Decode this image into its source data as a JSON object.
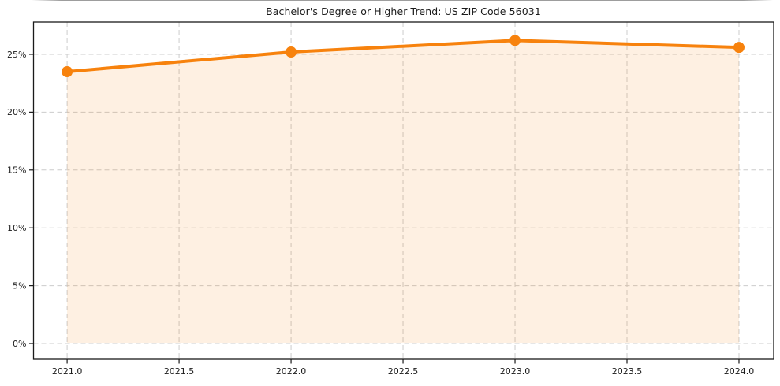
{
  "chart_data": {
    "type": "line",
    "title": "Bachelor's Degree or Higher Trend: US ZIP Code 56031",
    "xlabel": "",
    "ylabel": "",
    "x": [
      2021.0,
      2022.0,
      2023.0,
      2024.0
    ],
    "values": [
      23.5,
      25.2,
      26.2,
      25.6
    ],
    "area_fill": true,
    "area_baseline": 0,
    "marker": "circle",
    "x_tick_values": [
      2021.0,
      2021.5,
      2022.0,
      2022.5,
      2023.0,
      2023.5,
      2024.0
    ],
    "x_tick_labels": [
      "2021.0",
      "2021.5",
      "2022.0",
      "2022.5",
      "2023.0",
      "2023.5",
      "2024.0"
    ],
    "y_tick_values": [
      0,
      5,
      10,
      15,
      20,
      25
    ],
    "y_tick_labels": [
      "0%",
      "5%",
      "10%",
      "15%",
      "20%",
      "25%"
    ],
    "xlim": [
      2020.85,
      2024.155
    ],
    "ylim": [
      -1.36,
      27.79
    ],
    "grid": true,
    "grid_style": "dashed",
    "legend": "none",
    "colors": {
      "line": "#f7820d",
      "marker": "#f7820d",
      "area": "rgba(247,130,13,0.12)",
      "grid": "#cccccc",
      "axis": "#1a1a1a",
      "text": "#1a1a1a",
      "background": "#ffffff"
    }
  }
}
